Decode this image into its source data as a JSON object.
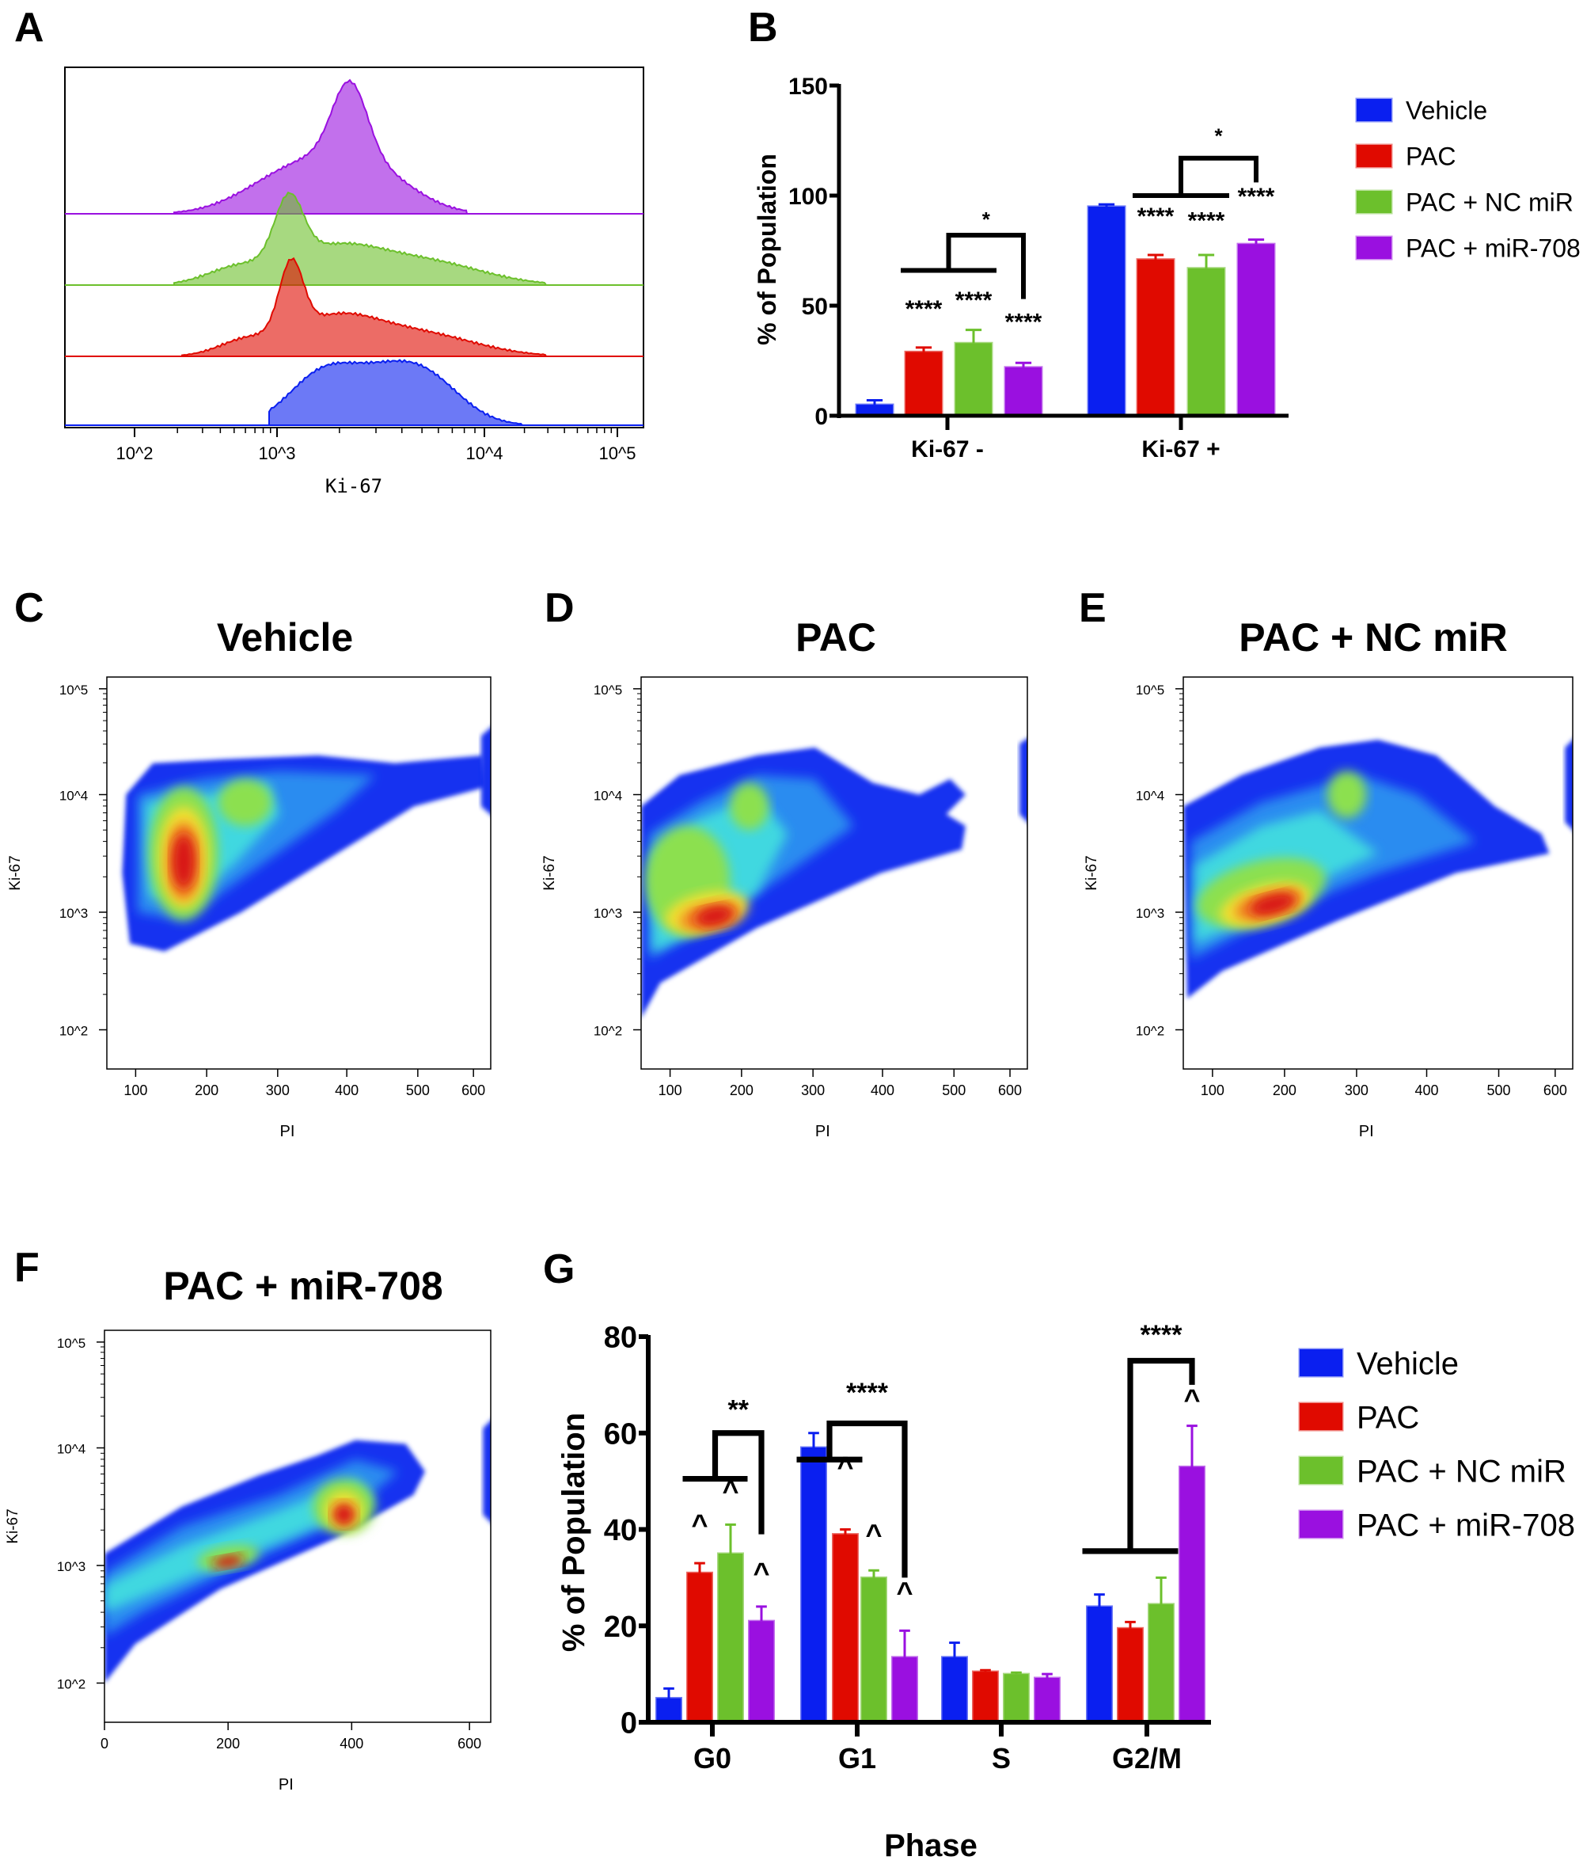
{
  "panel_letters": [
    "A",
    "B",
    "C",
    "D",
    "E",
    "F",
    "G"
  ],
  "colors": {
    "Vehicle": "#0a1ff0",
    "PAC": "#e00a00",
    "PAC + NC miR": "#6cc02c",
    "PAC + miR-708": "#9a10e0"
  },
  "chart_data": [
    {
      "panel": "A",
      "type": "area",
      "xlabel": "Ki-67",
      "x_scale": "log",
      "x_ticks": [
        "10^2",
        "10^3",
        "10^4",
        "10^5"
      ],
      "tracks_top_to_bottom": [
        "PAC + miR-708",
        "PAC + NC miR",
        "PAC",
        "Vehicle"
      ],
      "peak_positions": [
        2000,
        1000,
        1000,
        2500
      ]
    },
    {
      "panel": "B",
      "type": "bar",
      "categories": [
        "Ki-67 -",
        "Ki-67 +"
      ],
      "ylabel": "% of Population",
      "ylim": [
        0,
        150
      ],
      "yticks": [
        "0",
        "50",
        "100",
        "150"
      ],
      "legend": "right",
      "series": [
        {
          "name": "Vehicle",
          "values": [
            5,
            95
          ],
          "errors": [
            2,
            1
          ]
        },
        {
          "name": "PAC",
          "values": [
            29,
            71
          ],
          "errors": [
            2,
            2
          ]
        },
        {
          "name": "PAC + NC miR",
          "values": [
            33,
            67
          ],
          "errors": [
            6,
            6
          ]
        },
        {
          "name": "PAC + miR-708",
          "values": [
            22,
            78
          ],
          "errors": [
            2,
            2
          ]
        }
      ],
      "annotations": {
        "bar_stars": [
          [
            "",
            "****",
            "****",
            "****"
          ],
          [
            "",
            "****",
            "****",
            "****"
          ]
        ],
        "bracket_stars": [
          "*",
          "*"
        ]
      }
    },
    {
      "panel": "C",
      "type": "heatmap",
      "title": "Vehicle",
      "xlabel": "PI",
      "ylabel": "Ki-67",
      "x_ticks": [
        "100",
        "200",
        "300",
        "400",
        "500",
        "600"
      ],
      "y_ticks": [
        "10^2",
        "10^3",
        "10^4",
        "10^5"
      ]
    },
    {
      "panel": "D",
      "type": "heatmap",
      "title": "PAC",
      "xlabel": "PI",
      "ylabel": "Ki-67",
      "x_ticks": [
        "100",
        "200",
        "300",
        "400",
        "500",
        "600"
      ],
      "y_ticks": [
        "10^2",
        "10^3",
        "10^4",
        "10^5"
      ]
    },
    {
      "panel": "E",
      "type": "heatmap",
      "title": "PAC + NC miR",
      "xlabel": "PI",
      "ylabel": "Ki-67",
      "x_ticks": [
        "100",
        "200",
        "300",
        "400",
        "500",
        "600"
      ],
      "y_ticks": [
        "10^2",
        "10^3",
        "10^4",
        "10^5"
      ]
    },
    {
      "panel": "F",
      "type": "heatmap",
      "title": "PAC + miR-708",
      "xlabel": "PI",
      "ylabel": "Ki-67",
      "x_ticks": [
        "0",
        "200",
        "400",
        "600"
      ],
      "y_ticks": [
        "10^2",
        "10^3",
        "10^4",
        "10^5"
      ]
    },
    {
      "panel": "G",
      "type": "bar",
      "categories": [
        "G0",
        "G1",
        "S",
        "G2/M"
      ],
      "xlabel": "Phase",
      "ylabel": "% of Population",
      "ylim": [
        0,
        80
      ],
      "yticks": [
        "0",
        "20",
        "40",
        "60",
        "80"
      ],
      "legend": "right",
      "series": [
        {
          "name": "Vehicle",
          "values": [
            5,
            57,
            13.5,
            24
          ],
          "errors": [
            2,
            3,
            3,
            2.5
          ]
        },
        {
          "name": "PAC",
          "values": [
            31,
            39,
            10.5,
            19.5
          ],
          "errors": [
            2,
            1,
            0.3,
            1.3
          ]
        },
        {
          "name": "PAC + NC miR",
          "values": [
            35,
            30,
            10,
            24.5
          ],
          "errors": [
            6,
            1.5,
            0.3,
            5.5
          ]
        },
        {
          "name": "PAC + miR-708",
          "values": [
            21,
            13.5,
            9.2,
            53
          ],
          "errors": [
            3,
            5.5,
            0.8,
            8.5
          ]
        }
      ],
      "annotations": {
        "bar_marks": [
          [
            "",
            "^",
            "^",
            "^"
          ],
          [
            "",
            "^",
            "^",
            "^"
          ],
          [
            "",
            "",
            "",
            ""
          ],
          [
            "",
            "",
            "",
            "^"
          ]
        ],
        "bracket_stars": [
          "**",
          "****",
          "",
          "****"
        ]
      }
    }
  ]
}
